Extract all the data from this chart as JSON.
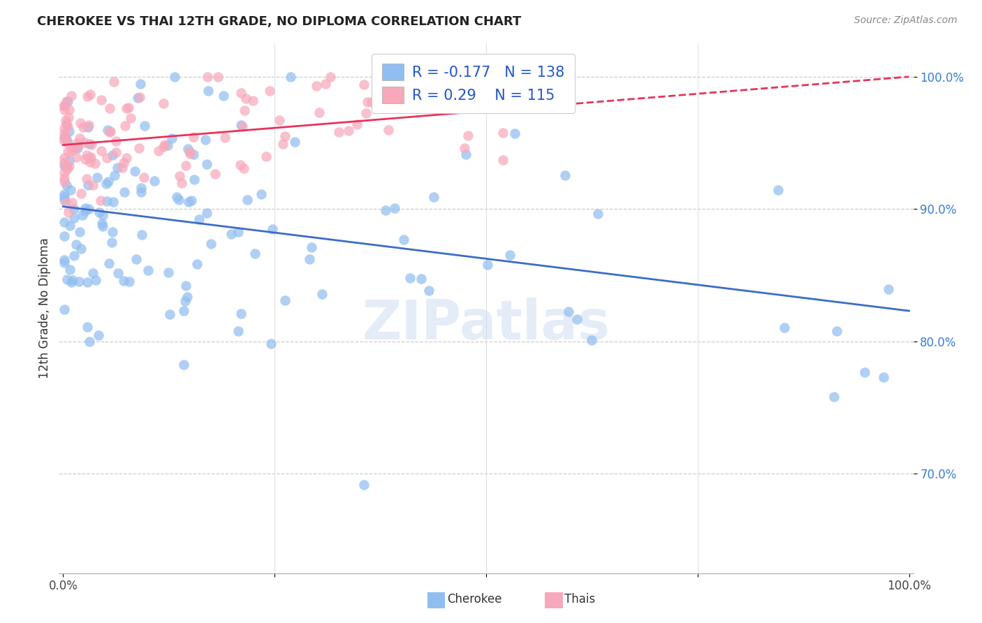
{
  "title": "CHEROKEE VS THAI 12TH GRADE, NO DIPLOMA CORRELATION CHART",
  "source": "Source: ZipAtlas.com",
  "ylabel": "12th Grade, No Diploma",
  "legend_label1": "Cherokee",
  "legend_label2": "Thais",
  "r1": -0.177,
  "n1": 138,
  "r2": 0.29,
  "n2": 115,
  "color_cherokee": "#91bef0",
  "color_thai": "#f7a8bb",
  "line_color_cherokee": "#3b6cc9",
  "line_color_thai": "#e8335a",
  "watermark": "ZIPatlas",
  "ylim_min": 0.625,
  "ylim_max": 1.025,
  "xlim_min": -0.005,
  "xlim_max": 1.005,
  "yticks": [
    0.7,
    0.8,
    0.9,
    1.0
  ],
  "ytick_labels": [
    "70.0%",
    "80.0%",
    "90.0%",
    "100.0%"
  ],
  "seed": 12345
}
